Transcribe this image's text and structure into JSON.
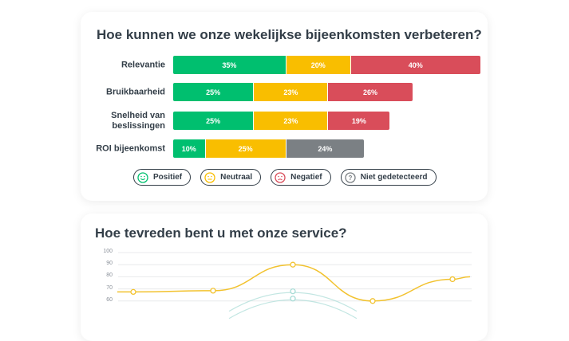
{
  "chart_data": [
    {
      "type": "bar",
      "orientation": "horizontal-stacked",
      "title": "Hoe kunnen we onze wekelijkse bijeenkomsten verbeteren?",
      "categories": [
        "Relevantie",
        "Bruikbaarheid",
        "Snelheid van beslissingen",
        "ROI bijeenkomst"
      ],
      "rows": [
        {
          "label": "Relevantie",
          "segments": [
            {
              "cat": "positief",
              "value": 35
            },
            {
              "cat": "neutraal",
              "value": 20
            },
            {
              "cat": "negatief",
              "value": 40
            }
          ]
        },
        {
          "label": "Bruikbaarheid",
          "segments": [
            {
              "cat": "positief",
              "value": 25
            },
            {
              "cat": "neutraal",
              "value": 23
            },
            {
              "cat": "negatief",
              "value": 26
            }
          ]
        },
        {
          "label": "Snelheid van beslissingen",
          "segments": [
            {
              "cat": "positief",
              "value": 25
            },
            {
              "cat": "neutraal",
              "value": 23
            },
            {
              "cat": "negatief",
              "value": 19
            }
          ]
        },
        {
          "label": "ROI bijeenkomst",
          "segments": [
            {
              "cat": "positief",
              "value": 10
            },
            {
              "cat": "neutraal",
              "value": 25
            },
            {
              "cat": "niet",
              "value": 24
            }
          ]
        }
      ],
      "legend": [
        {
          "key": "positief",
          "label": "Positief",
          "color": "#00bf6f",
          "icon": "smile-icon"
        },
        {
          "key": "neutraal",
          "label": "Neutraal",
          "color": "#f9be00",
          "icon": "neutral-face-icon"
        },
        {
          "key": "negatief",
          "label": "Negatief",
          "color": "#d94d5a",
          "icon": "frown-icon"
        },
        {
          "key": "niet",
          "label": "Niet gedetecteerd",
          "color": "#7b8084",
          "icon": "question-icon"
        }
      ],
      "legend_placement": "bottom"
    },
    {
      "type": "line",
      "title": "Hoe tevreden bent u met onze service?",
      "yticks": [
        100,
        90,
        80,
        70,
        60
      ],
      "ylim": [
        60,
        100
      ],
      "grid": true,
      "series": [
        {
          "color": "#f2c22e",
          "values": [
            67.5,
            68.5,
            90,
            60,
            78,
            80
          ]
        },
        {
          "color": "#a8dcd6",
          "values": [
            null,
            null,
            68,
            null,
            null,
            null
          ]
        },
        {
          "color": "#a8dcd6",
          "values": [
            null,
            null,
            62,
            null,
            null,
            null
          ]
        }
      ]
    }
  ]
}
